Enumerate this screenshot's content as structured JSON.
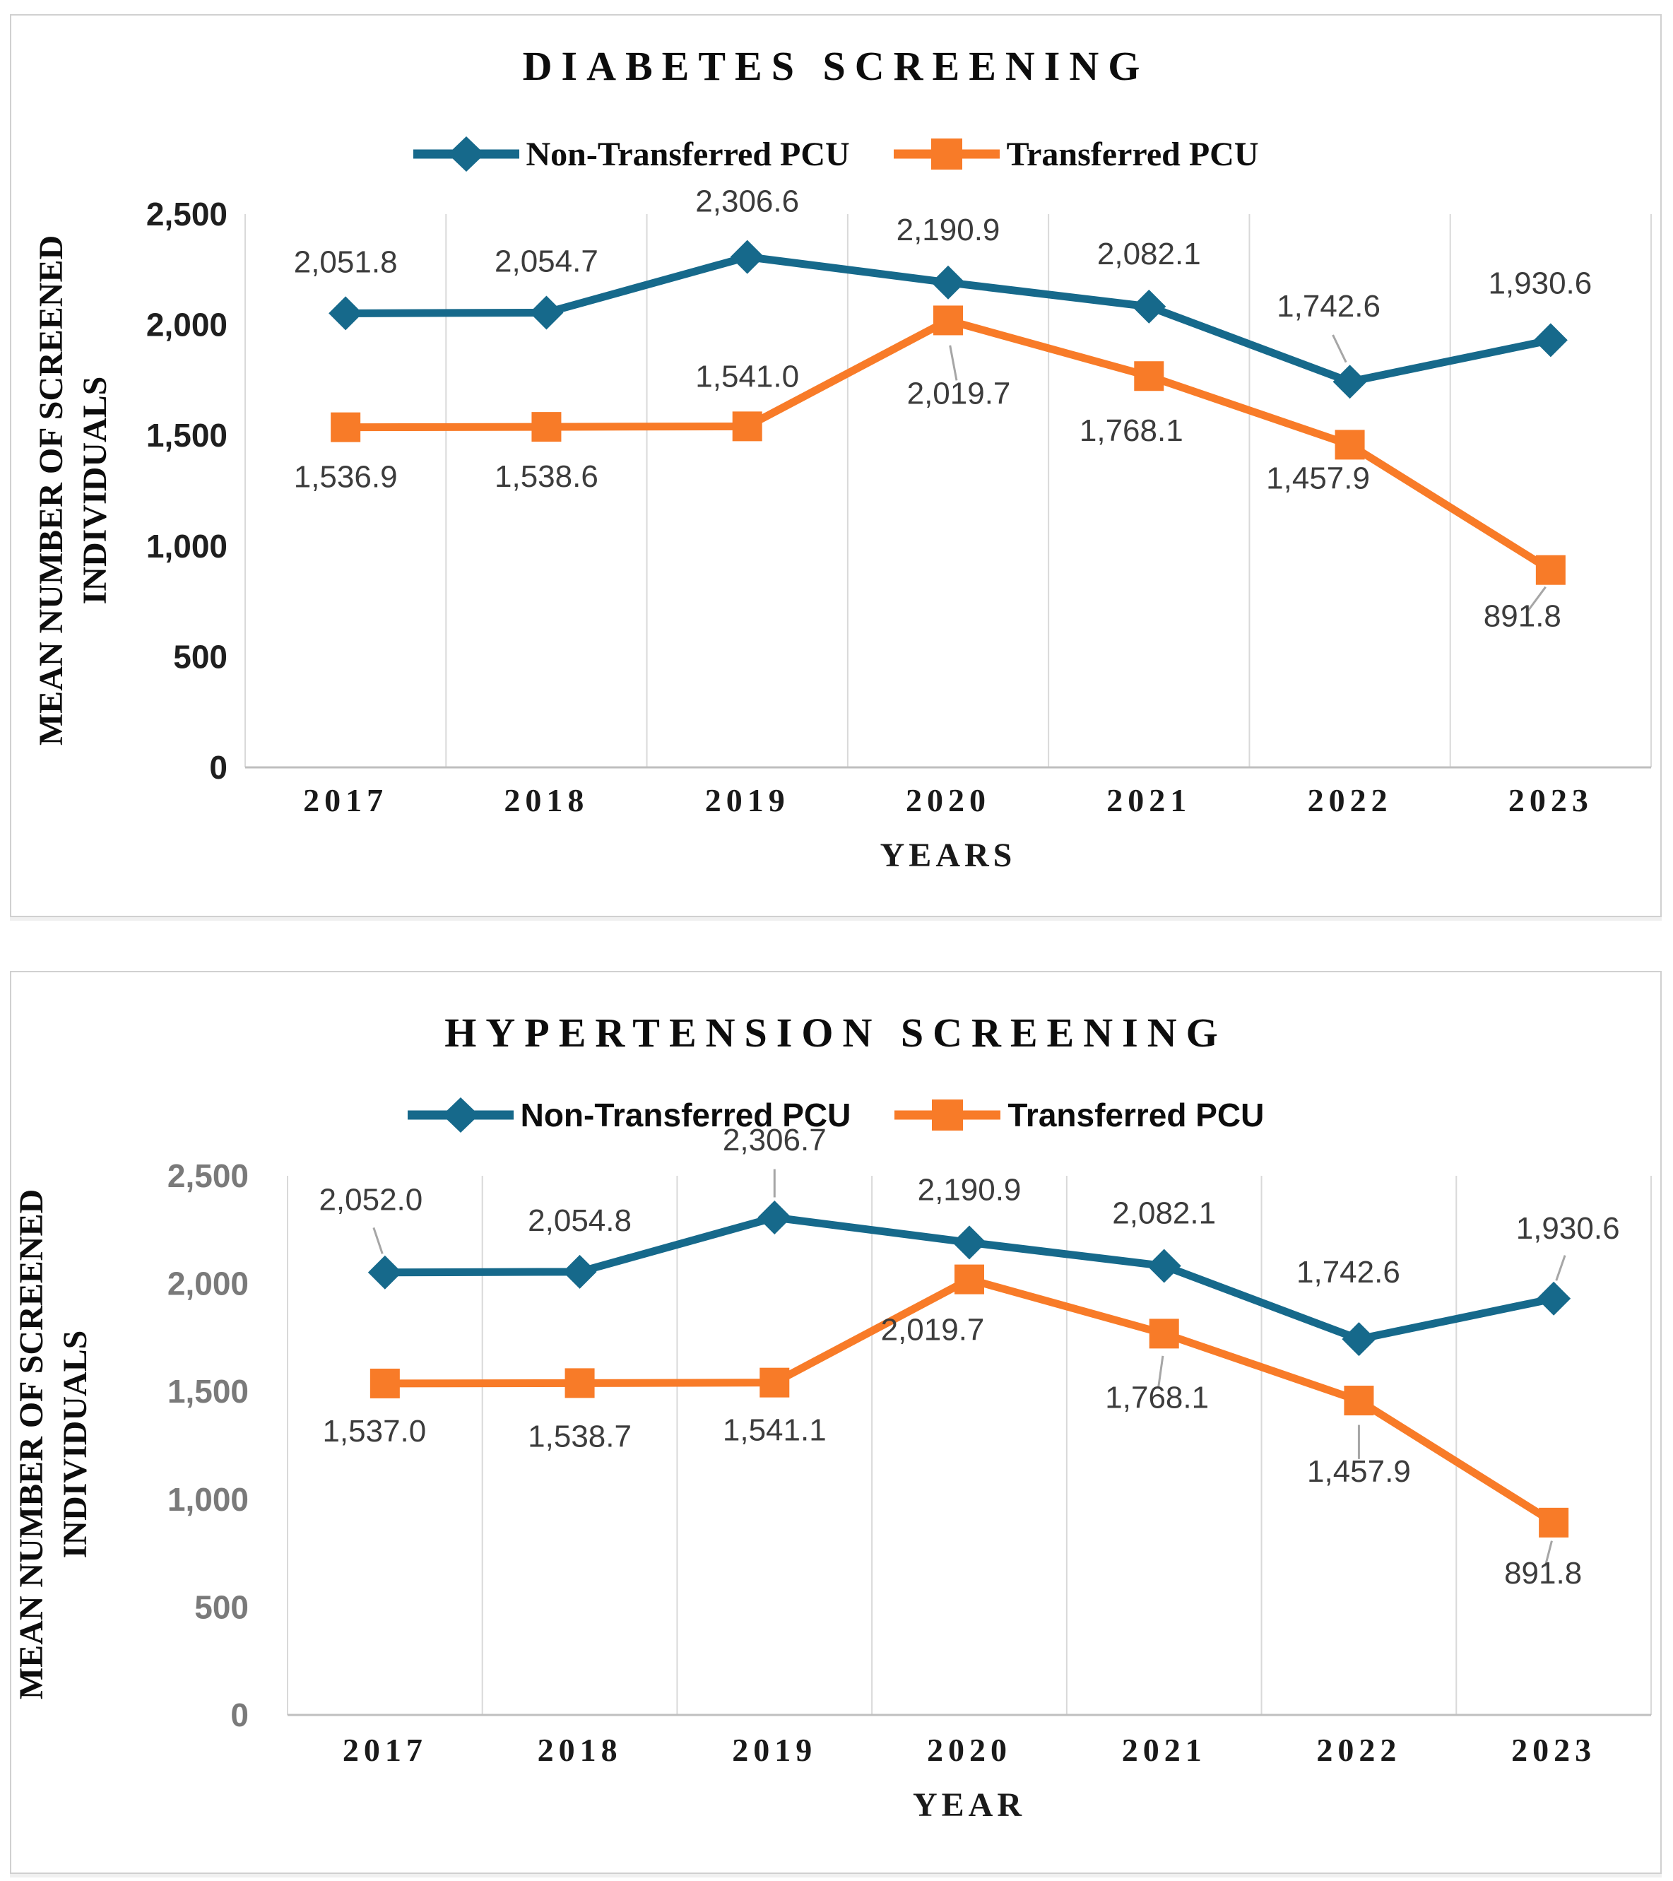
{
  "page": {
    "background": "#FFFFFF",
    "panel_border": "#D0D0D0",
    "grid_color": "#D9D9D9",
    "baseline_color": "#BFBFBF",
    "leader_color": "#A6A6A6",
    "data_label_color": "#3C3C3C",
    "x_tick_color": "#1A1A1A",
    "title_color": "#0D0D0D"
  },
  "chart_data": [
    {
      "type": "line",
      "title": "DIABETES SCREENING",
      "categories": [
        "2017",
        "2018",
        "2019",
        "2020",
        "2021",
        "2022",
        "2023"
      ],
      "series": [
        {
          "name": "Non-Transferred PCU",
          "color": "#16698B",
          "marker": "diamond",
          "values": [
            2051.8,
            2054.7,
            2306.6,
            2190.9,
            2082.1,
            1742.6,
            1930.6
          ],
          "labels": [
            "2,051.8",
            "2,054.7",
            "2,306.6",
            "2,190.9",
            "2,082.1",
            "1,742.6",
            "1,930.6"
          ]
        },
        {
          "name": "Transferred PCU",
          "color": "#F87B28",
          "marker": "square",
          "values": [
            1536.9,
            1538.6,
            1541.0,
            2019.7,
            1768.1,
            1457.9,
            891.8
          ],
          "labels": [
            "1,536.9",
            "1,538.6",
            "1,541.0",
            "2,019.7",
            "1,768.1",
            "1,457.9",
            "891.8"
          ]
        }
      ],
      "xlabel": "YEARS",
      "ylabel_line1": "MEAN NUMBER OF SCREENED",
      "ylabel_line2": "INDIVIDUALS",
      "ylim": [
        0,
        2500
      ],
      "ytick_step": 500,
      "yticks": [
        "0",
        "500",
        "1,000",
        "1,500",
        "2,000",
        "2,500"
      ],
      "ytick_color": "#1F1F1F",
      "legend_position": "top",
      "grid": "vertical-only",
      "label_layout": [
        [
          [
            0,
            -58,
            false
          ],
          [
            0,
            -58,
            false
          ],
          [
            0,
            -64,
            false
          ],
          [
            0,
            -60,
            false
          ],
          [
            0,
            -60,
            false
          ],
          [
            -30,
            -92,
            true
          ],
          [
            -15,
            -66,
            false
          ]
        ],
        [
          [
            0,
            85,
            false
          ],
          [
            0,
            85,
            false
          ],
          [
            0,
            -56,
            false
          ],
          [
            15,
            118,
            true
          ],
          [
            -25,
            92,
            false
          ],
          [
            -45,
            62,
            false
          ],
          [
            -40,
            80,
            true
          ]
        ]
      ]
    },
    {
      "type": "line",
      "title": "HYPERTENSION SCREENING",
      "categories": [
        "2017",
        "2018",
        "2019",
        "2020",
        "2021",
        "2022",
        "2023"
      ],
      "series": [
        {
          "name": "Non-Transferred PCU",
          "color": "#16698B",
          "marker": "diamond",
          "values": [
            2052.0,
            2054.8,
            2306.7,
            2190.9,
            2082.1,
            1742.6,
            1930.6
          ],
          "labels": [
            "2,052.0",
            "2,054.8",
            "2,306.7",
            "2,190.9",
            "2,082.1",
            "1,742.6",
            "1,930.6"
          ]
        },
        {
          "name": "Transferred PCU",
          "color": "#F87B28",
          "marker": "square",
          "values": [
            1537.0,
            1538.7,
            1541.1,
            2019.7,
            1768.1,
            1457.9,
            891.8
          ],
          "labels": [
            "1,537.0",
            "1,538.7",
            "1,541.1",
            "2,019.7",
            "1,768.1",
            "1,457.9",
            "891.8"
          ]
        }
      ],
      "xlabel": "YEAR",
      "ylabel_line1": "MEAN NUMBER OF SCREENED",
      "ylabel_line2": "INDIVIDUALS",
      "ylim": [
        0,
        2500
      ],
      "ytick_step": 500,
      "yticks": [
        "0",
        "500",
        "1,000",
        "1,500",
        "2,000",
        "2,500"
      ],
      "ytick_color": "#7A7A7A",
      "legend_position": "top",
      "grid": "vertical-only",
      "label_layout": [
        [
          [
            -20,
            -88,
            true
          ],
          [
            0,
            -58,
            false
          ],
          [
            0,
            -95,
            true
          ],
          [
            0,
            -60,
            false
          ],
          [
            0,
            -60,
            false
          ],
          [
            -15,
            -80,
            false
          ],
          [
            20,
            -85,
            true
          ]
        ],
        [
          [
            -15,
            82,
            false
          ],
          [
            0,
            90,
            false
          ],
          [
            0,
            82,
            false
          ],
          [
            -52,
            86,
            false
          ],
          [
            -10,
            105,
            true
          ],
          [
            0,
            115,
            true
          ],
          [
            -15,
            86,
            true
          ]
        ]
      ]
    }
  ]
}
